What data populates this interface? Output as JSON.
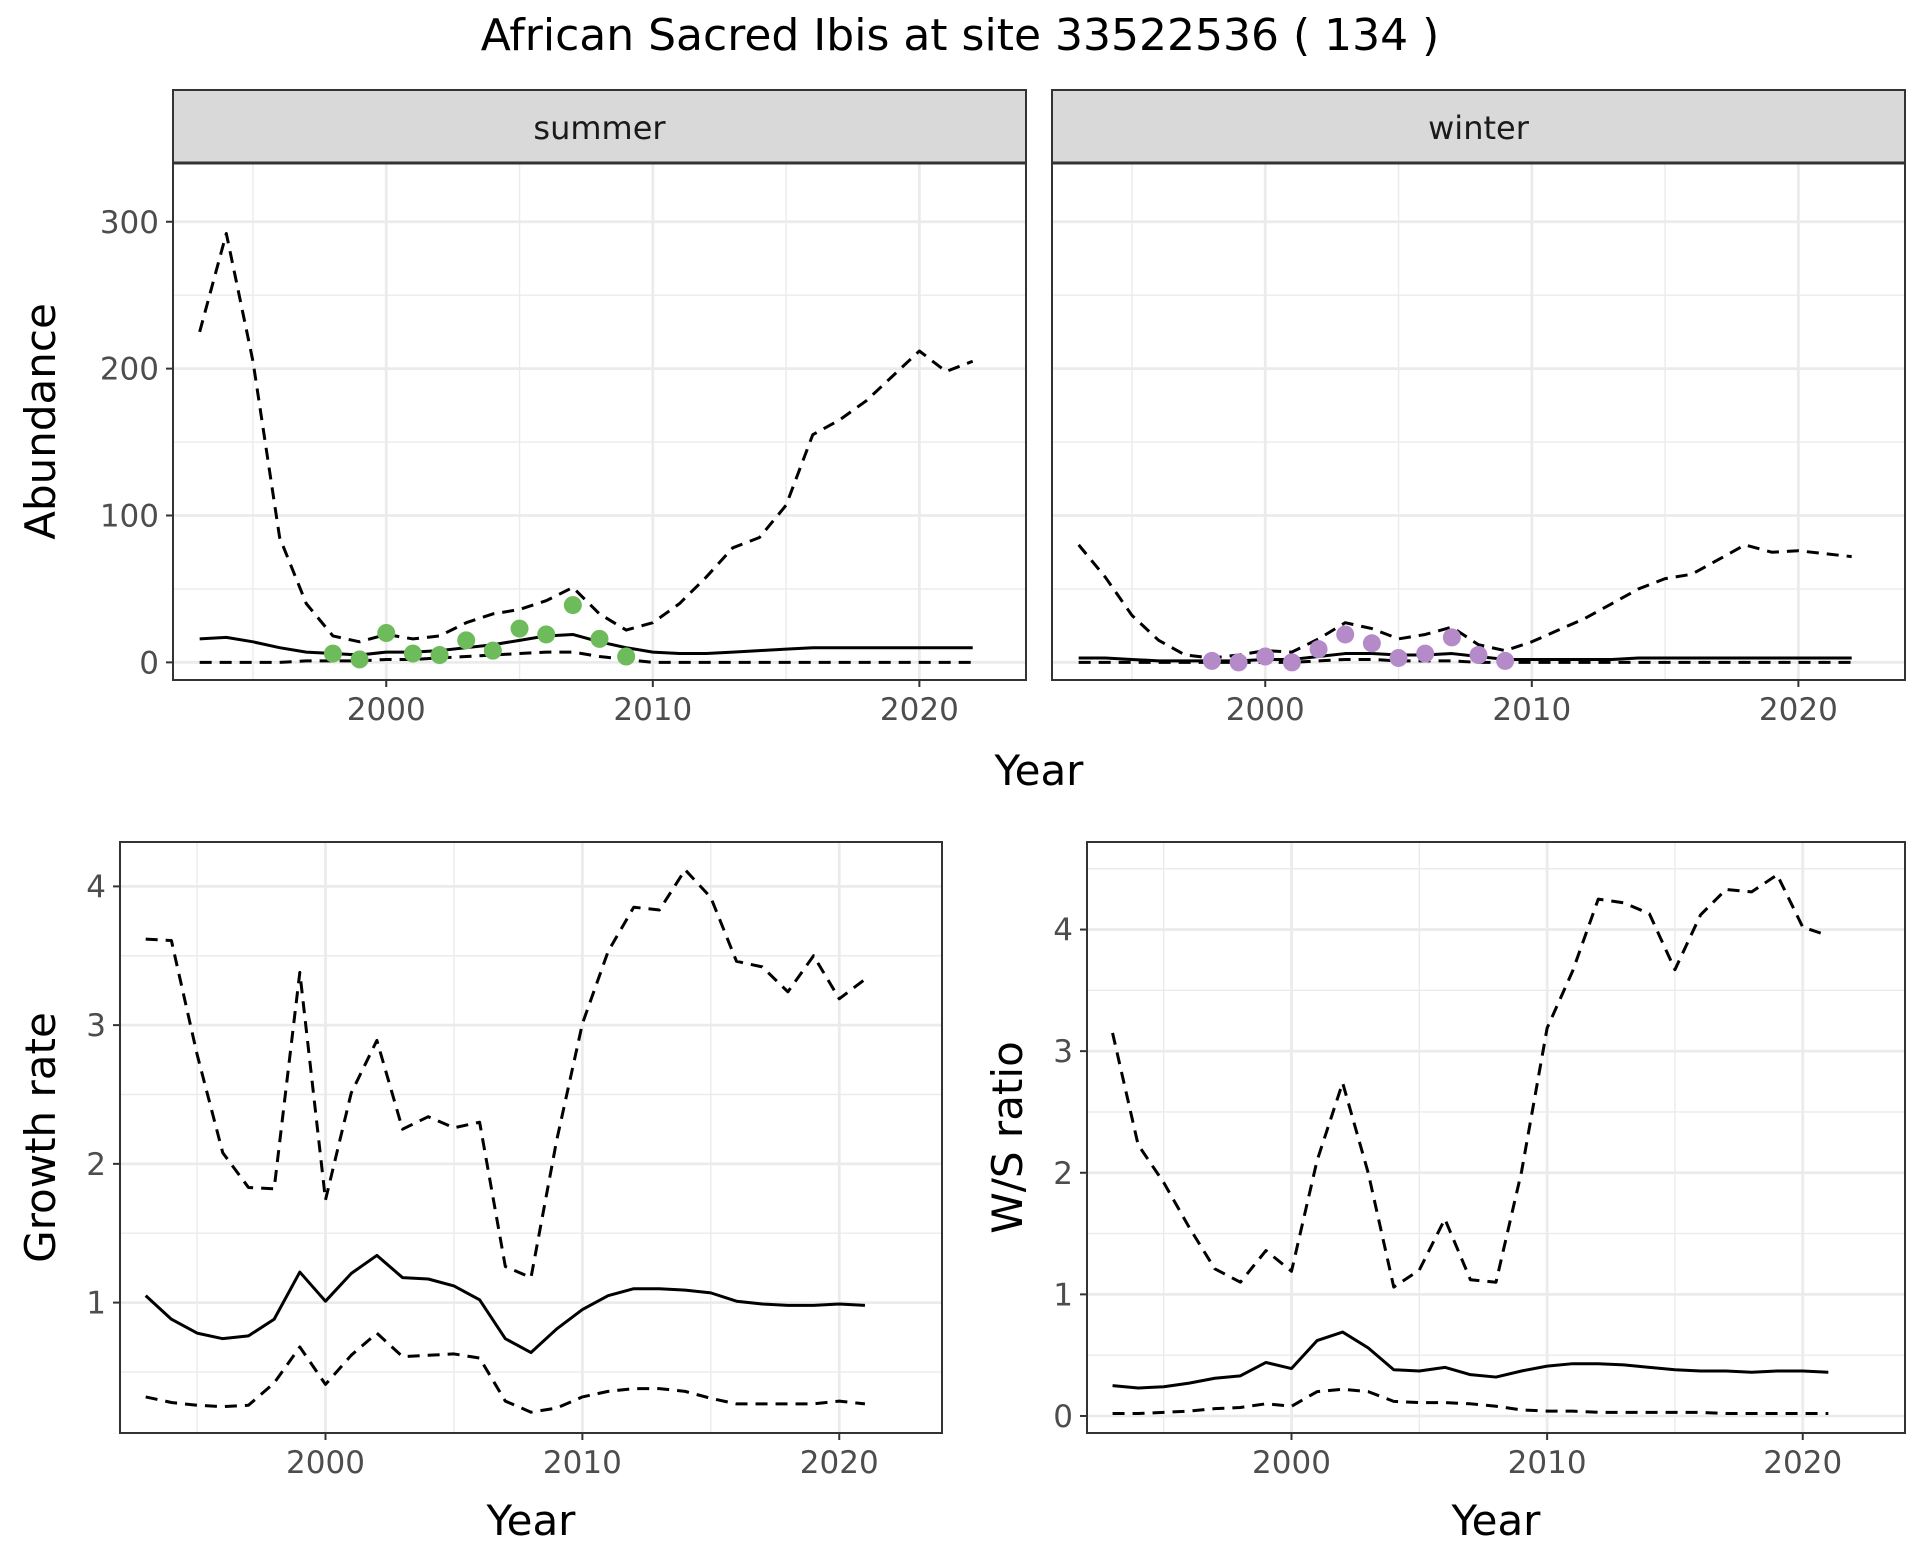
{
  "figure": {
    "title": "African Sacred Ibis at site 33522536 ( 134 )"
  },
  "colors": {
    "summer_points": "#6dbb5a",
    "winter_points": "#b48ac9",
    "lines": "#000000",
    "grid": "#ebebeb",
    "strip_fill": "#d9d9d9",
    "panel_border": "#333333"
  },
  "chart_data": [
    {
      "type": "line",
      "panel": "abundance",
      "facets": [
        "summer",
        "winter"
      ],
      "xlabel": "Year",
      "ylabel": "Abundance",
      "x_ticks": [
        2000,
        2010,
        2020
      ],
      "y_ticks": [
        0,
        100,
        200,
        300
      ],
      "xlim": [
        1992,
        2024
      ],
      "ylim": [
        -12,
        340
      ],
      "grid": true,
      "summer": {
        "x": [
          1993,
          1994,
          1995,
          1996,
          1997,
          1998,
          1999,
          2000,
          2001,
          2002,
          2003,
          2004,
          2005,
          2006,
          2007,
          2008,
          2009,
          2010,
          2011,
          2012,
          2013,
          2014,
          2015,
          2016,
          2017,
          2018,
          2019,
          2020,
          2021,
          2022
        ],
        "mean": [
          16,
          17,
          14,
          10,
          7,
          6,
          5,
          7,
          7,
          8,
          10,
          12,
          15,
          18,
          19,
          14,
          10,
          7,
          6,
          6,
          7,
          8,
          9,
          10,
          10,
          10,
          10,
          10,
          10,
          10
        ],
        "upper": [
          225,
          292,
          205,
          85,
          40,
          18,
          14,
          19,
          16,
          18,
          27,
          33,
          36,
          42,
          51,
          33,
          22,
          27,
          40,
          58,
          78,
          85,
          107,
          155,
          165,
          178,
          195,
          212,
          198,
          205
        ],
        "lower": [
          0,
          0,
          0,
          0,
          1,
          1,
          1,
          2,
          2,
          3,
          4,
          5,
          6,
          7,
          7,
          4,
          2,
          0,
          0,
          0,
          0,
          0,
          0,
          0,
          0,
          0,
          0,
          0,
          0,
          0
        ],
        "points_x": [
          1998,
          1999,
          2000,
          2001,
          2002,
          2003,
          2004,
          2005,
          2006,
          2007,
          2008,
          2009
        ],
        "points_y": [
          6,
          2,
          20,
          6,
          5,
          15,
          8,
          23,
          19,
          39,
          16,
          4
        ]
      },
      "winter": {
        "x": [
          1993,
          1994,
          1995,
          1996,
          1997,
          1998,
          1999,
          2000,
          2001,
          2002,
          2003,
          2004,
          2005,
          2006,
          2007,
          2008,
          2009,
          2010,
          2011,
          2012,
          2013,
          2014,
          2015,
          2016,
          2017,
          2018,
          2019,
          2020,
          2021,
          2022
        ],
        "mean": [
          3,
          3,
          2,
          1,
          1,
          1,
          1,
          2,
          2,
          4,
          6,
          6,
          5,
          5,
          6,
          4,
          2,
          2,
          2,
          2,
          2,
          3,
          3,
          3,
          3,
          3,
          3,
          3,
          3,
          3
        ],
        "upper": [
          80,
          58,
          32,
          15,
          5,
          3,
          5,
          8,
          7,
          16,
          27,
          23,
          16,
          19,
          24,
          12,
          8,
          14,
          22,
          30,
          40,
          50,
          57,
          60,
          70,
          80,
          75,
          76,
          74,
          72
        ],
        "lower": [
          0,
          0,
          0,
          0,
          0,
          0,
          0,
          0,
          0,
          1,
          2,
          2,
          1,
          1,
          1,
          0,
          0,
          0,
          0,
          0,
          0,
          0,
          0,
          0,
          0,
          0,
          0,
          0,
          0,
          0
        ],
        "points_x": [
          1998,
          1999,
          2000,
          2001,
          2002,
          2003,
          2004,
          2005,
          2006,
          2007,
          2008,
          2009
        ],
        "points_y": [
          1,
          0,
          4,
          0,
          9,
          19,
          13,
          3,
          6,
          17,
          5,
          1
        ]
      }
    },
    {
      "type": "line",
      "panel": "growth",
      "xlabel": "Year",
      "ylabel": "Growth rate",
      "x_ticks": [
        2000,
        2010,
        2020
      ],
      "y_ticks": [
        1,
        2,
        3,
        4
      ],
      "xlim": [
        1992,
        2024
      ],
      "ylim": [
        0.06,
        4.32
      ],
      "grid": true,
      "x": [
        1993,
        1994,
        1995,
        1996,
        1997,
        1998,
        1999,
        2000,
        2001,
        2002,
        2003,
        2004,
        2005,
        2006,
        2007,
        2008,
        2009,
        2010,
        2011,
        2012,
        2013,
        2014,
        2015,
        2016,
        2017,
        2018,
        2019,
        2020,
        2021
      ],
      "mean": [
        1.05,
        0.88,
        0.78,
        0.74,
        0.76,
        0.88,
        1.22,
        1.01,
        1.21,
        1.34,
        1.18,
        1.17,
        1.12,
        1.02,
        0.74,
        0.64,
        0.81,
        0.95,
        1.05,
        1.1,
        1.1,
        1.09,
        1.07,
        1.01,
        0.99,
        0.98,
        0.98,
        0.99,
        0.98
      ],
      "upper": [
        3.62,
        3.61,
        2.79,
        2.08,
        1.83,
        1.82,
        3.38,
        1.74,
        2.51,
        2.89,
        2.25,
        2.34,
        2.26,
        2.3,
        1.26,
        1.18,
        2.17,
        3.01,
        3.53,
        3.85,
        3.83,
        4.12,
        3.92,
        3.46,
        3.42,
        3.24,
        3.5,
        3.19,
        3.33
      ],
      "lower": [
        0.32,
        0.28,
        0.26,
        0.25,
        0.26,
        0.42,
        0.68,
        0.41,
        0.62,
        0.78,
        0.61,
        0.62,
        0.63,
        0.6,
        0.29,
        0.21,
        0.24,
        0.32,
        0.36,
        0.38,
        0.38,
        0.36,
        0.31,
        0.27,
        0.27,
        0.27,
        0.27,
        0.29,
        0.27
      ]
    },
    {
      "type": "line",
      "panel": "ratio",
      "xlabel": "Year",
      "ylabel": "W/S ratio",
      "x_ticks": [
        2000,
        2010,
        2020
      ],
      "y_ticks": [
        0,
        1,
        2,
        3,
        4
      ],
      "xlim": [
        1992,
        2024
      ],
      "ylim": [
        -0.14,
        4.72
      ],
      "grid": true,
      "x": [
        1993,
        1994,
        1995,
        1996,
        1997,
        1998,
        1999,
        2000,
        2001,
        2002,
        2003,
        2004,
        2005,
        2006,
        2007,
        2008,
        2009,
        2010,
        2011,
        2012,
        2013,
        2014,
        2015,
        2016,
        2017,
        2018,
        2019,
        2020,
        2021
      ],
      "mean": [
        0.25,
        0.23,
        0.24,
        0.27,
        0.31,
        0.33,
        0.44,
        0.39,
        0.62,
        0.69,
        0.56,
        0.38,
        0.37,
        0.4,
        0.34,
        0.32,
        0.37,
        0.41,
        0.43,
        0.43,
        0.42,
        0.4,
        0.38,
        0.37,
        0.37,
        0.36,
        0.37,
        0.37,
        0.36
      ],
      "upper": [
        3.15,
        2.23,
        1.92,
        1.55,
        1.21,
        1.1,
        1.36,
        1.19,
        2.1,
        2.74,
        2.0,
        1.06,
        1.2,
        1.62,
        1.12,
        1.1,
        2.01,
        3.19,
        3.66,
        4.25,
        4.22,
        4.13,
        3.67,
        4.12,
        4.33,
        4.31,
        4.45,
        4.02,
        3.95
      ],
      "lower": [
        0.02,
        0.02,
        0.03,
        0.04,
        0.06,
        0.07,
        0.1,
        0.08,
        0.2,
        0.22,
        0.2,
        0.12,
        0.11,
        0.11,
        0.1,
        0.08,
        0.05,
        0.04,
        0.04,
        0.03,
        0.03,
        0.03,
        0.03,
        0.03,
        0.02,
        0.02,
        0.02,
        0.02,
        0.02
      ]
    }
  ]
}
